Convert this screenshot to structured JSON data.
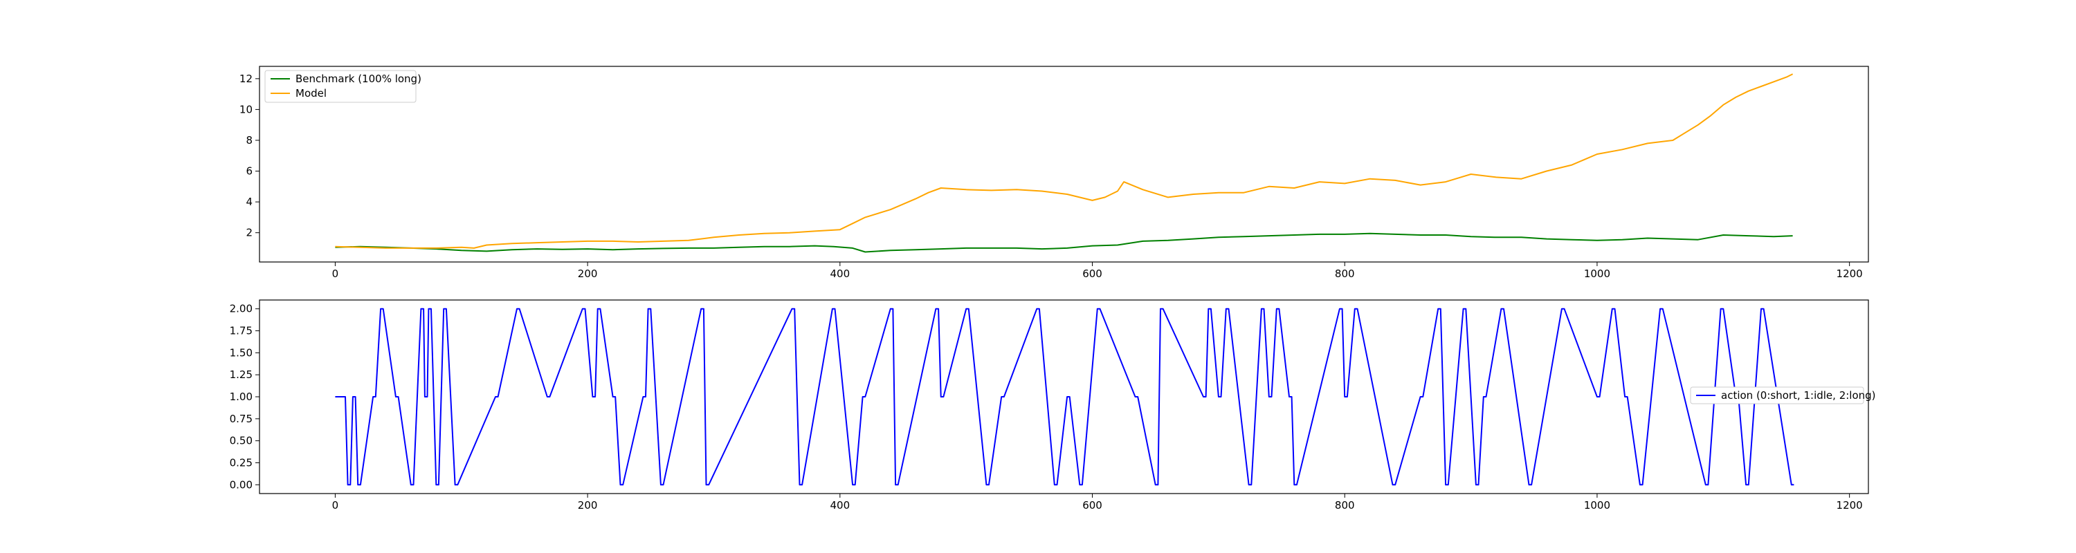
{
  "chart_data": [
    {
      "type": "line",
      "title": "",
      "xlabel": "",
      "ylabel": "",
      "xlim": [
        -60,
        1215
      ],
      "ylim": [
        0.1,
        12.8
      ],
      "xticks": [
        0,
        200,
        400,
        600,
        800,
        1000,
        1200
      ],
      "yticks": [
        2,
        4,
        6,
        8,
        10,
        12
      ],
      "grid": false,
      "legend_position": "upper-left",
      "series": [
        {
          "name": "Benchmark (100% long)",
          "color": "#008000",
          "x": [
            0,
            20,
            40,
            60,
            80,
            100,
            120,
            140,
            160,
            180,
            200,
            220,
            240,
            260,
            280,
            300,
            320,
            340,
            360,
            380,
            395,
            410,
            420,
            440,
            460,
            480,
            500,
            520,
            540,
            560,
            580,
            600,
            620,
            640,
            660,
            680,
            700,
            720,
            740,
            760,
            780,
            800,
            820,
            840,
            860,
            880,
            900,
            920,
            940,
            960,
            980,
            1000,
            1020,
            1040,
            1060,
            1080,
            1100,
            1120,
            1140,
            1155
          ],
          "y": [
            1.05,
            1.1,
            1.05,
            1.0,
            0.95,
            0.85,
            0.8,
            0.9,
            0.95,
            0.92,
            0.95,
            0.9,
            0.95,
            0.98,
            1.0,
            1.0,
            1.05,
            1.1,
            1.1,
            1.15,
            1.1,
            1.0,
            0.75,
            0.85,
            0.9,
            0.95,
            1.0,
            1.0,
            1.0,
            0.95,
            1.0,
            1.15,
            1.2,
            1.45,
            1.5,
            1.6,
            1.7,
            1.75,
            1.8,
            1.85,
            1.9,
            1.9,
            1.95,
            1.9,
            1.85,
            1.85,
            1.75,
            1.7,
            1.7,
            1.6,
            1.55,
            1.5,
            1.55,
            1.65,
            1.6,
            1.55,
            1.85,
            1.8,
            1.75,
            1.8
          ]
        },
        {
          "name": "Model",
          "color": "#ffa500",
          "x": [
            0,
            20,
            40,
            60,
            80,
            100,
            110,
            120,
            140,
            160,
            180,
            200,
            220,
            240,
            260,
            280,
            300,
            320,
            340,
            360,
            380,
            400,
            410,
            420,
            440,
            460,
            470,
            480,
            500,
            520,
            540,
            560,
            580,
            600,
            610,
            620,
            625,
            640,
            660,
            680,
            700,
            720,
            740,
            760,
            780,
            800,
            820,
            840,
            860,
            880,
            900,
            920,
            940,
            960,
            980,
            1000,
            1020,
            1040,
            1060,
            1070,
            1080,
            1090,
            1100,
            1110,
            1120,
            1130,
            1140,
            1150,
            1155
          ],
          "y": [
            1.1,
            1.05,
            1.0,
            1.0,
            1.0,
            1.05,
            1.0,
            1.2,
            1.3,
            1.35,
            1.4,
            1.45,
            1.45,
            1.4,
            1.45,
            1.5,
            1.7,
            1.85,
            1.95,
            2.0,
            2.1,
            2.2,
            2.6,
            3.0,
            3.5,
            4.2,
            4.6,
            4.9,
            4.8,
            4.75,
            4.8,
            4.7,
            4.5,
            4.1,
            4.3,
            4.7,
            5.3,
            4.8,
            4.3,
            4.5,
            4.6,
            4.6,
            5.0,
            4.9,
            5.3,
            5.2,
            5.5,
            5.4,
            5.1,
            5.3,
            5.8,
            5.6,
            5.5,
            6.0,
            6.4,
            7.1,
            7.4,
            7.8,
            8.0,
            8.5,
            9.0,
            9.6,
            10.3,
            10.8,
            11.2,
            11.5,
            11.8,
            12.1,
            12.3
          ]
        }
      ]
    },
    {
      "type": "line",
      "title": "",
      "xlabel": "",
      "ylabel": "",
      "xlim": [
        -60,
        1215
      ],
      "ylim": [
        -0.1,
        2.1
      ],
      "xticks": [
        0,
        200,
        400,
        600,
        800,
        1000,
        1200
      ],
      "yticks": [
        0.0,
        0.25,
        0.5,
        0.75,
        1.0,
        1.25,
        1.5,
        1.75,
        2.0
      ],
      "ytick_labels": [
        "0.00",
        "0.25",
        "0.50",
        "0.75",
        "1.00",
        "1.25",
        "1.50",
        "1.75",
        "2.00"
      ],
      "grid": false,
      "legend_position": "center-right",
      "series": [
        {
          "name": "action (0:short, 1:idle, 2:long)",
          "color": "#0000ff",
          "x": [
            0,
            8,
            10,
            12,
            14,
            16,
            18,
            20,
            30,
            32,
            36,
            38,
            48,
            50,
            60,
            62,
            68,
            70,
            71,
            73,
            74,
            76,
            80,
            82,
            86,
            88,
            95,
            97,
            127,
            129,
            144,
            146,
            168,
            170,
            196,
            198,
            204,
            206,
            208,
            210,
            220,
            222,
            226,
            228,
            244,
            246,
            248,
            250,
            258,
            260,
            290,
            292,
            294,
            296,
            362,
            364,
            368,
            370,
            394,
            396,
            410,
            412,
            418,
            420,
            440,
            442,
            444,
            446,
            476,
            478,
            480,
            482,
            500,
            502,
            516,
            518,
            528,
            530,
            556,
            558,
            570,
            572,
            580,
            582,
            590,
            592,
            604,
            606,
            634,
            636,
            650,
            652,
            654,
            656,
            688,
            690,
            692,
            694,
            700,
            702,
            706,
            708,
            724,
            726,
            734,
            736,
            740,
            742,
            746,
            748,
            756,
            758,
            760,
            762,
            796,
            798,
            800,
            802,
            808,
            810,
            838,
            840,
            860,
            862,
            874,
            876,
            880,
            882,
            894,
            896,
            904,
            906,
            910,
            912,
            924,
            926,
            946,
            948,
            972,
            974,
            1000,
            1002,
            1012,
            1014,
            1022,
            1024,
            1034,
            1036,
            1050,
            1052,
            1086,
            1088,
            1098,
            1100,
            1110,
            1112,
            1118,
            1120,
            1130,
            1132,
            1154,
            1156
          ],
          "y": [
            1,
            1,
            0,
            0,
            1,
            1,
            0,
            0,
            1,
            1,
            2,
            2,
            1,
            1,
            0,
            0,
            2,
            2,
            1,
            1,
            2,
            2,
            0,
            0,
            2,
            2,
            0,
            0,
            1,
            1,
            2,
            2,
            1,
            1,
            2,
            2,
            1,
            1,
            2,
            2,
            1,
            1,
            0,
            0,
            1,
            1,
            2,
            2,
            0,
            0,
            2,
            2,
            0,
            0,
            2,
            2,
            0,
            0,
            2,
            2,
            0,
            0,
            1,
            1,
            2,
            2,
            0,
            0,
            2,
            2,
            1,
            1,
            2,
            2,
            0,
            0,
            1,
            1,
            2,
            2,
            0,
            0,
            1,
            1,
            0,
            0,
            2,
            2,
            1,
            1,
            0,
            0,
            2,
            2,
            1,
            1,
            2,
            2,
            1,
            1,
            2,
            2,
            0,
            0,
            2,
            2,
            1,
            1,
            2,
            2,
            1,
            1,
            0,
            0,
            2,
            2,
            1,
            1,
            2,
            2,
            0,
            0,
            1,
            1,
            2,
            2,
            0,
            0,
            2,
            2,
            0,
            0,
            1,
            1,
            2,
            2,
            0,
            0,
            2,
            2,
            1,
            1,
            2,
            2,
            1,
            1,
            0,
            0,
            2,
            2,
            0,
            0,
            2,
            2,
            1,
            1,
            0,
            0,
            2,
            2,
            0,
            0
          ]
        }
      ]
    }
  ]
}
